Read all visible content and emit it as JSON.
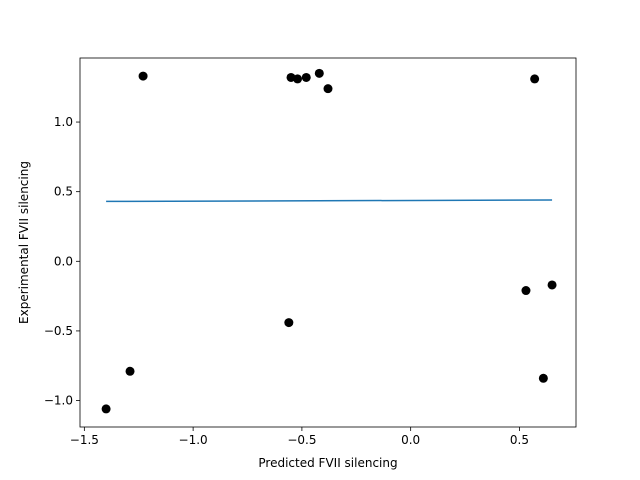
{
  "chart_data": {
    "type": "scatter",
    "title": "",
    "xlabel": "Predicted FVII silencing",
    "ylabel": "Experimental FVII silencing",
    "xlim": [
      -1.52,
      0.76
    ],
    "ylim": [
      -1.19,
      1.46
    ],
    "xticks": [
      -1.5,
      -1.0,
      -0.5,
      0.0,
      0.5
    ],
    "xtick_labels": [
      "−1.5",
      "−1.0",
      "−0.5",
      "0.0",
      "0.5"
    ],
    "yticks": [
      -1.0,
      -0.5,
      0.0,
      0.5,
      1.0
    ],
    "ytick_labels": [
      "−1.0",
      "−0.5",
      "0.0",
      "0.5",
      "1.0"
    ],
    "grid": false,
    "colors": {
      "points": "#000000",
      "fit_line": "#1f77b4"
    },
    "points": [
      {
        "x": -1.4,
        "y": -1.06
      },
      {
        "x": -1.29,
        "y": -0.79
      },
      {
        "x": -1.23,
        "y": 1.33
      },
      {
        "x": -0.56,
        "y": -0.44
      },
      {
        "x": -0.55,
        "y": 1.32
      },
      {
        "x": -0.52,
        "y": 1.31
      },
      {
        "x": -0.48,
        "y": 1.32
      },
      {
        "x": -0.42,
        "y": 1.35
      },
      {
        "x": -0.38,
        "y": 1.24
      },
      {
        "x": 0.53,
        "y": -0.21
      },
      {
        "x": 0.57,
        "y": 1.31
      },
      {
        "x": 0.61,
        "y": -0.84
      },
      {
        "x": 0.65,
        "y": -0.17
      }
    ],
    "fit_line": {
      "x": [
        -1.4,
        0.65
      ],
      "y": [
        0.43,
        0.44
      ]
    }
  }
}
